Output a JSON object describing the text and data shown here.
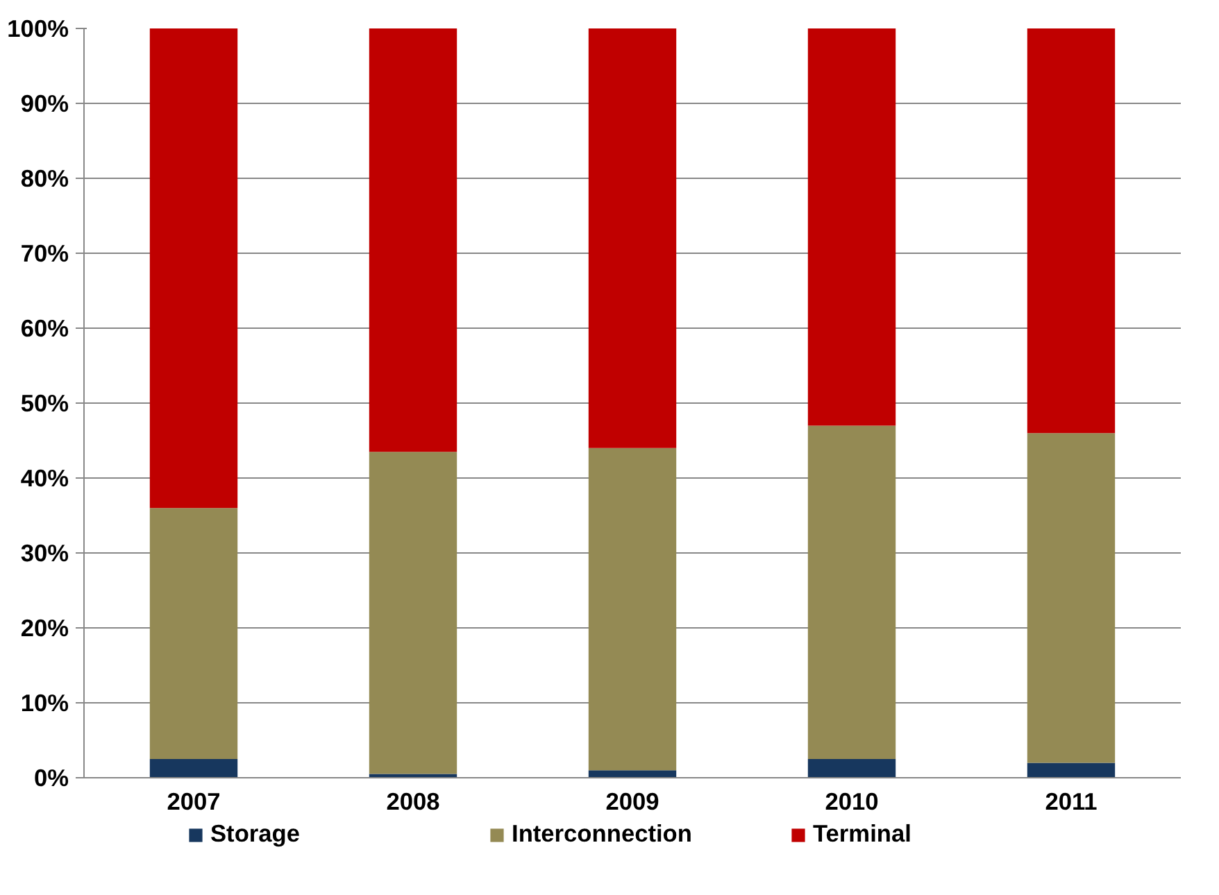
{
  "chart_data": {
    "type": "bar",
    "stacked": true,
    "categories": [
      "2007",
      "2008",
      "2009",
      "2010",
      "2011"
    ],
    "series": [
      {
        "name": "Storage",
        "color": "#17375e",
        "values": [
          2.5,
          0.5,
          1,
          2.5,
          2
        ]
      },
      {
        "name": "Interconnection",
        "color": "#948a54",
        "values": [
          33.5,
          43,
          43,
          44.5,
          44
        ]
      },
      {
        "name": "Terminal",
        "color": "#c00000",
        "values": [
          64,
          56.5,
          56,
          53,
          54
        ]
      }
    ],
    "ylim": [
      0,
      100
    ],
    "yticks": [
      {
        "value": 0,
        "label": "0%"
      },
      {
        "value": 10,
        "label": "10%"
      },
      {
        "value": 20,
        "label": "20%"
      },
      {
        "value": 30,
        "label": "30%"
      },
      {
        "value": 40,
        "label": "40%"
      },
      {
        "value": 50,
        "label": "50%"
      },
      {
        "value": 60,
        "label": "60%"
      },
      {
        "value": 70,
        "label": "70%"
      },
      {
        "value": 80,
        "label": "80%"
      },
      {
        "value": 90,
        "label": "90%"
      },
      {
        "value": 100,
        "label": "100%"
      }
    ],
    "grid": "y",
    "legend": "bottom"
  }
}
